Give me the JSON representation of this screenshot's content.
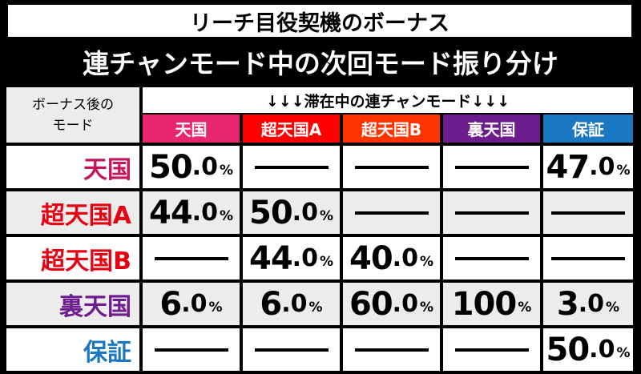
{
  "title_line1": "リーチ目役契機のボーナス",
  "title_line2": "連チャンモード中の次回モード振り分け",
  "header_left_line1": "ボーナス後の",
  "header_left_line2": "モード",
  "banner": "↓↓↓滞在中の連チャンモード↓↓↓",
  "columns": [
    {
      "label": "天国",
      "color": "#e8266e"
    },
    {
      "label": "超天国A",
      "color": "#ff0000"
    },
    {
      "label": "超天国B",
      "color": "#ff3300"
    },
    {
      "label": "裏天国",
      "color": "#6d1c8d"
    },
    {
      "label": "保証",
      "color": "#1a78c2"
    }
  ],
  "rows": [
    {
      "label": "天国",
      "color": "#c4145a",
      "cells": [
        [
          "50",
          ".0",
          "%"
        ],
        null,
        null,
        null,
        [
          "47",
          ".0",
          "%"
        ]
      ]
    },
    {
      "label": "超天国A",
      "color": "#e60012",
      "cells": [
        [
          "44",
          ".0",
          "%"
        ],
        [
          "50",
          ".0",
          "%"
        ],
        null,
        null,
        null
      ]
    },
    {
      "label": "超天国B",
      "color": "#e60012",
      "cells": [
        null,
        [
          "44",
          ".0",
          "%"
        ],
        [
          "40",
          ".0",
          "%"
        ],
        null,
        null
      ]
    },
    {
      "label": "裏天国",
      "color": "#6d1c8d",
      "cells": [
        [
          "6",
          ".0",
          "%"
        ],
        [
          "6",
          ".0",
          "%"
        ],
        [
          "60",
          ".0",
          "%"
        ],
        [
          "100",
          "",
          "%"
        ],
        [
          "3",
          ".0",
          "%"
        ]
      ]
    },
    {
      "label": "保証",
      "color": "#1a78c2",
      "cells": [
        null,
        null,
        null,
        null,
        [
          "50",
          ".0",
          "%"
        ]
      ]
    }
  ]
}
